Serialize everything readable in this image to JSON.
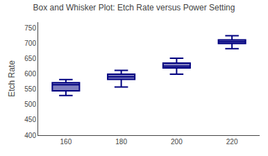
{
  "chart_data": {
    "type": "box",
    "title": "Box and Whisker Plot: Etch Rate versus Power Setting",
    "ylabel": "Etch Rate",
    "categories": [
      "160",
      "180",
      "200",
      "220"
    ],
    "values": [
      {
        "min": 530,
        "q1": 545,
        "median": 565,
        "q3": 572,
        "max": 582
      },
      {
        "min": 558,
        "q1": 583,
        "median": 591,
        "q3": 600,
        "max": 612
      },
      {
        "min": 600,
        "q1": 620,
        "median": 626,
        "q3": 636,
        "max": 652
      },
      {
        "min": 683,
        "q1": 700,
        "median": 706,
        "q3": 712,
        "max": 726
      }
    ],
    "color": "#000080",
    "ylim": [
      400,
      770
    ],
    "yticks": [
      400,
      450,
      500,
      550,
      600,
      650,
      700,
      750
    ],
    "grid": false
  }
}
